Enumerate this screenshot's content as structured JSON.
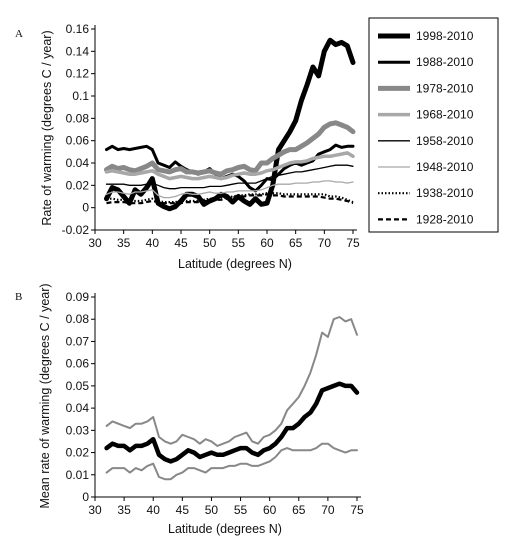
{
  "chart_data": [
    {
      "panel": "A",
      "type": "line",
      "xlabel": "Latitude (degrees N)",
      "ylabel": "Rate of warming (degrees C / year)",
      "xlim": [
        30,
        75
      ],
      "ylim": [
        -0.02,
        0.16
      ],
      "xticks": [
        30,
        35,
        40,
        45,
        50,
        55,
        60,
        65,
        70,
        75
      ],
      "yticks": [
        -0.02,
        0,
        0.02,
        0.04,
        0.06,
        0.08,
        0.1,
        0.12,
        0.14,
        0.16
      ],
      "ytick_labels": [
        "-0.02",
        "0",
        "0.02",
        "0.04",
        "0.06",
        "0.08",
        "0.1",
        "0.12",
        "0.14",
        "0.16"
      ],
      "legend_position": "right",
      "x": [
        32,
        33,
        34,
        35,
        36,
        37,
        38,
        39,
        40,
        41,
        42,
        43,
        44,
        45,
        46,
        47,
        48,
        49,
        50,
        51,
        52,
        53,
        54,
        55,
        56,
        57,
        58,
        59,
        60,
        61,
        62,
        63,
        64,
        65,
        66,
        67,
        68,
        69,
        70,
        71,
        72,
        73,
        74,
        75
      ],
      "series": [
        {
          "name": "1998-2010",
          "color": "#000000",
          "width": 5,
          "dash": "",
          "values": [
            0.008,
            0.018,
            0.016,
            0.01,
            0.004,
            0.016,
            0.012,
            0.018,
            0.026,
            0.004,
            0.001,
            -0.001,
            0.001,
            0.006,
            0.012,
            0.012,
            0.01,
            0.003,
            0.006,
            0.008,
            0.012,
            0.01,
            0.005,
            0.01,
            0.006,
            0.003,
            0.008,
            0.003,
            0.004,
            0.02,
            0.052,
            0.06,
            0.068,
            0.078,
            0.096,
            0.11,
            0.126,
            0.118,
            0.14,
            0.15,
            0.146,
            0.148,
            0.145,
            0.13
          ]
        },
        {
          "name": "1988-2010",
          "color": "#000000",
          "width": 3,
          "dash": "",
          "values": [
            0.052,
            0.055,
            0.052,
            0.053,
            0.052,
            0.053,
            0.054,
            0.055,
            0.052,
            0.04,
            0.038,
            0.036,
            0.041,
            0.037,
            0.034,
            0.032,
            0.03,
            0.032,
            0.035,
            0.03,
            0.026,
            0.028,
            0.03,
            0.028,
            0.024,
            0.018,
            0.015,
            0.02,
            0.026,
            0.025,
            0.03,
            0.035,
            0.038,
            0.04,
            0.038,
            0.04,
            0.042,
            0.048,
            0.05,
            0.052,
            0.056,
            0.054,
            0.055,
            0.055
          ]
        },
        {
          "name": "1978-2010",
          "color": "#888888",
          "width": 5,
          "dash": "",
          "values": [
            0.034,
            0.037,
            0.035,
            0.036,
            0.034,
            0.033,
            0.035,
            0.037,
            0.04,
            0.034,
            0.033,
            0.032,
            0.034,
            0.035,
            0.032,
            0.032,
            0.031,
            0.032,
            0.033,
            0.031,
            0.03,
            0.033,
            0.034,
            0.036,
            0.037,
            0.034,
            0.033,
            0.04,
            0.04,
            0.044,
            0.047,
            0.05,
            0.052,
            0.052,
            0.055,
            0.058,
            0.062,
            0.066,
            0.072,
            0.075,
            0.076,
            0.074,
            0.072,
            0.068
          ]
        },
        {
          "name": "1968-2010",
          "color": "#a8a8a8",
          "width": 3.5,
          "dash": "",
          "values": [
            0.032,
            0.033,
            0.032,
            0.031,
            0.03,
            0.03,
            0.031,
            0.032,
            0.033,
            0.03,
            0.028,
            0.026,
            0.027,
            0.028,
            0.027,
            0.026,
            0.026,
            0.027,
            0.028,
            0.027,
            0.026,
            0.027,
            0.029,
            0.03,
            0.031,
            0.03,
            0.03,
            0.031,
            0.033,
            0.034,
            0.036,
            0.038,
            0.04,
            0.041,
            0.041,
            0.042,
            0.044,
            0.045,
            0.046,
            0.046,
            0.047,
            0.048,
            0.049,
            0.046
          ]
        },
        {
          "name": "1958-2010",
          "color": "#000000",
          "width": 1.3,
          "dash": "",
          "values": [
            0.021,
            0.021,
            0.021,
            0.021,
            0.02,
            0.02,
            0.02,
            0.021,
            0.022,
            0.02,
            0.018,
            0.017,
            0.017,
            0.018,
            0.018,
            0.018,
            0.018,
            0.018,
            0.019,
            0.019,
            0.019,
            0.02,
            0.021,
            0.022,
            0.022,
            0.022,
            0.022,
            0.024,
            0.026,
            0.028,
            0.029,
            0.03,
            0.031,
            0.032,
            0.032,
            0.033,
            0.034,
            0.035,
            0.036,
            0.037,
            0.038,
            0.038,
            0.038,
            0.037
          ]
        },
        {
          "name": "1948-2010",
          "color": "#a8a8a8",
          "width": 1.3,
          "dash": "",
          "values": [
            0.012,
            0.014,
            0.014,
            0.013,
            0.012,
            0.014,
            0.014,
            0.015,
            0.016,
            0.011,
            0.009,
            0.009,
            0.01,
            0.012,
            0.013,
            0.012,
            0.012,
            0.013,
            0.014,
            0.013,
            0.013,
            0.014,
            0.014,
            0.015,
            0.015,
            0.015,
            0.015,
            0.016,
            0.018,
            0.02,
            0.021,
            0.021,
            0.021,
            0.022,
            0.022,
            0.022,
            0.023,
            0.023,
            0.024,
            0.024,
            0.023,
            0.023,
            0.022,
            0.023
          ]
        },
        {
          "name": "1938-2010",
          "color": "#000000",
          "width": 2.2,
          "dash": "1.5,2",
          "values": [
            0.008,
            0.008,
            0.007,
            0.007,
            0.006,
            0.006,
            0.006,
            0.007,
            0.008,
            0.006,
            0.005,
            0.005,
            0.005,
            0.006,
            0.006,
            0.006,
            0.006,
            0.007,
            0.008,
            0.008,
            0.009,
            0.009,
            0.01,
            0.011,
            0.011,
            0.012,
            0.012,
            0.012,
            0.013,
            0.013,
            0.013,
            0.012,
            0.012,
            0.012,
            0.012,
            0.012,
            0.012,
            0.012,
            0.012,
            0.01,
            0.01,
            0.009,
            0.007,
            0.005
          ]
        },
        {
          "name": "1928-2010",
          "color": "#000000",
          "width": 2.2,
          "dash": "5,3",
          "values": [
            0.004,
            0.005,
            0.005,
            0.005,
            0.004,
            0.004,
            0.004,
            0.005,
            0.006,
            0.005,
            0.004,
            0.004,
            0.004,
            0.004,
            0.005,
            0.005,
            0.005,
            0.006,
            0.006,
            0.007,
            0.007,
            0.008,
            0.009,
            0.01,
            0.01,
            0.011,
            0.011,
            0.011,
            0.012,
            0.011,
            0.011,
            0.01,
            0.01,
            0.01,
            0.01,
            0.01,
            0.01,
            0.01,
            0.009,
            0.008,
            0.008,
            0.007,
            0.006,
            0.004
          ]
        }
      ]
    },
    {
      "panel": "B",
      "type": "line",
      "xlabel": "Latitude (degrees N)",
      "ylabel": "Mean rate of warming (degrees C / year)",
      "xlim": [
        30,
        75
      ],
      "ylim": [
        0,
        0.09
      ],
      "xticks": [
        30,
        35,
        40,
        45,
        50,
        55,
        60,
        65,
        70,
        75
      ],
      "yticks": [
        0,
        0.01,
        0.02,
        0.03,
        0.04,
        0.05,
        0.06,
        0.07,
        0.08,
        0.09
      ],
      "ytick_labels": [
        "0",
        "0.01",
        "0.02",
        "0.03",
        "0.04",
        "0.05",
        "0.06",
        "0.07",
        "0.08",
        "0.09"
      ],
      "x": [
        32,
        33,
        34,
        35,
        36,
        37,
        38,
        39,
        40,
        41,
        42,
        43,
        44,
        45,
        46,
        47,
        48,
        49,
        50,
        51,
        52,
        53,
        54,
        55,
        56,
        57,
        58,
        59,
        60,
        61,
        62,
        63,
        64,
        65,
        66,
        67,
        68,
        69,
        70,
        71,
        72,
        73,
        74,
        75
      ],
      "series": [
        {
          "color": "#888888",
          "width": 2,
          "dash": "",
          "values": [
            0.032,
            0.034,
            0.033,
            0.032,
            0.031,
            0.033,
            0.033,
            0.034,
            0.036,
            0.027,
            0.025,
            0.024,
            0.025,
            0.028,
            0.027,
            0.026,
            0.024,
            0.026,
            0.025,
            0.023,
            0.024,
            0.025,
            0.027,
            0.028,
            0.029,
            0.025,
            0.024,
            0.027,
            0.028,
            0.03,
            0.033,
            0.039,
            0.042,
            0.045,
            0.05,
            0.056,
            0.064,
            0.074,
            0.072,
            0.08,
            0.081,
            0.079,
            0.08,
            0.073
          ]
        },
        {
          "color": "#000000",
          "width": 4.5,
          "dash": "",
          "values": [
            0.022,
            0.024,
            0.023,
            0.023,
            0.021,
            0.023,
            0.023,
            0.024,
            0.026,
            0.019,
            0.017,
            0.016,
            0.017,
            0.019,
            0.021,
            0.02,
            0.018,
            0.019,
            0.02,
            0.019,
            0.019,
            0.02,
            0.021,
            0.022,
            0.022,
            0.02,
            0.019,
            0.021,
            0.022,
            0.024,
            0.027,
            0.031,
            0.031,
            0.033,
            0.036,
            0.038,
            0.042,
            0.048,
            0.049,
            0.05,
            0.051,
            0.05,
            0.05,
            0.047
          ]
        },
        {
          "color": "#888888",
          "width": 2,
          "dash": "",
          "values": [
            0.011,
            0.013,
            0.013,
            0.013,
            0.011,
            0.013,
            0.012,
            0.014,
            0.015,
            0.009,
            0.008,
            0.008,
            0.01,
            0.011,
            0.013,
            0.013,
            0.012,
            0.011,
            0.013,
            0.013,
            0.013,
            0.014,
            0.014,
            0.015,
            0.015,
            0.014,
            0.014,
            0.015,
            0.016,
            0.018,
            0.021,
            0.022,
            0.021,
            0.021,
            0.021,
            0.021,
            0.022,
            0.024,
            0.024,
            0.022,
            0.021,
            0.02,
            0.021,
            0.021
          ]
        }
      ]
    }
  ],
  "panel_labels": {
    "a": "A",
    "b": "B"
  }
}
